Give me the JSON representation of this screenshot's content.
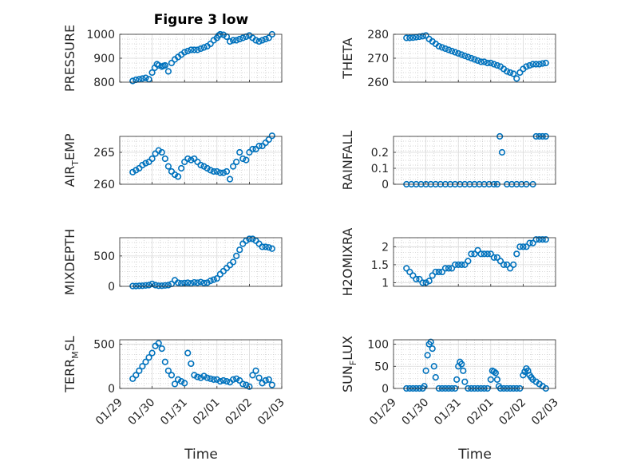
{
  "figure": {
    "title": "Figure 3 low"
  },
  "colors": {
    "marker": "#0072BD",
    "axis": "#262626",
    "grid": "#c8c8c8",
    "background": "#ffffff"
  },
  "chart_data": [
    {
      "type": "scatter",
      "ylabel": "PRESSURE",
      "ylim": [
        800,
        1000
      ],
      "yticks": [
        800,
        900,
        1000
      ],
      "xticks": [
        "01/29",
        "01/30",
        "01/31",
        "02/01",
        "02/02",
        "02/03"
      ],
      "xlim": [
        0,
        5
      ],
      "x": [
        0.4,
        0.5,
        0.6,
        0.7,
        0.8,
        0.9,
        1.0,
        1.08,
        1.15,
        1.2,
        1.3,
        1.35,
        1.4,
        1.5,
        1.6,
        1.7,
        1.8,
        1.9,
        2.0,
        2.1,
        2.2,
        2.3,
        2.4,
        2.5,
        2.6,
        2.7,
        2.8,
        2.9,
        3.0,
        3.05,
        3.1,
        3.2,
        3.3,
        3.4,
        3.5,
        3.6,
        3.7,
        3.8,
        3.9,
        4.0,
        4.1,
        4.2,
        4.3,
        4.4,
        4.5,
        4.6,
        4.7
      ],
      "y": [
        805,
        810,
        812,
        815,
        818,
        812,
        840,
        860,
        875,
        870,
        865,
        868,
        870,
        845,
        880,
        895,
        905,
        915,
        925,
        930,
        935,
        935,
        935,
        940,
        945,
        950,
        960,
        975,
        985,
        995,
        1000,
        998,
        990,
        970,
        975,
        975,
        980,
        985,
        990,
        995,
        985,
        975,
        970,
        975,
        980,
        985,
        1000
      ]
    },
    {
      "type": "scatter",
      "ylabel": "THETA",
      "ylim": [
        260,
        280
      ],
      "yticks": [
        260,
        270,
        280
      ],
      "xticks": [
        "01/29",
        "01/30",
        "01/31",
        "02/01",
        "02/02",
        "02/03"
      ],
      "xlim": [
        0,
        5
      ],
      "x": [
        0.4,
        0.5,
        0.6,
        0.7,
        0.8,
        0.9,
        1.0,
        1.1,
        1.2,
        1.3,
        1.4,
        1.5,
        1.6,
        1.7,
        1.8,
        1.9,
        2.0,
        2.1,
        2.2,
        2.3,
        2.4,
        2.5,
        2.6,
        2.7,
        2.8,
        2.9,
        3.0,
        3.1,
        3.2,
        3.3,
        3.4,
        3.5,
        3.6,
        3.7,
        3.8,
        3.9,
        4.0,
        4.1,
        4.2,
        4.3,
        4.4,
        4.5,
        4.6,
        4.7
      ],
      "y": [
        278.5,
        278.5,
        278.6,
        278.8,
        279.0,
        279.2,
        279.5,
        278.0,
        277.0,
        276.0,
        275.0,
        274.5,
        274.0,
        273.5,
        273.0,
        272.5,
        272.0,
        271.5,
        271.0,
        270.5,
        270.0,
        269.5,
        269.0,
        268.5,
        268.5,
        268.0,
        268.0,
        267.5,
        267.0,
        266.5,
        265.5,
        264.5,
        264.0,
        263.5,
        261.5,
        264.0,
        265.5,
        266.5,
        267.0,
        267.5,
        267.5,
        267.5,
        267.8,
        268.0
      ]
    },
    {
      "type": "scatter",
      "ylabel": "AIR",
      "ylabel_sub": "T",
      "ylabel_rest": "EMP",
      "ylim": [
        260,
        267.5
      ],
      "yticks": [
        260,
        265
      ],
      "xticks": [
        "01/29",
        "01/30",
        "01/31",
        "02/01",
        "02/02",
        "02/03"
      ],
      "xlim": [
        0,
        5
      ],
      "x": [
        0.4,
        0.5,
        0.6,
        0.7,
        0.8,
        0.9,
        1.0,
        1.1,
        1.2,
        1.3,
        1.4,
        1.5,
        1.6,
        1.7,
        1.8,
        1.9,
        2.0,
        2.1,
        2.2,
        2.3,
        2.4,
        2.5,
        2.6,
        2.7,
        2.8,
        2.9,
        3.0,
        3.1,
        3.2,
        3.3,
        3.4,
        3.5,
        3.6,
        3.7,
        3.8,
        3.9,
        4.0,
        4.1,
        4.2,
        4.3,
        4.4,
        4.5,
        4.6,
        4.7
      ],
      "y": [
        261.9,
        262.2,
        262.5,
        263.0,
        263.3,
        263.5,
        264.0,
        264.8,
        265.3,
        265.0,
        264.0,
        262.8,
        262.0,
        261.5,
        261.2,
        262.5,
        263.5,
        264.0,
        263.8,
        264.0,
        263.5,
        263.0,
        262.8,
        262.5,
        262.2,
        262.0,
        262.0,
        261.8,
        261.8,
        262.0,
        260.8,
        262.8,
        263.5,
        265.0,
        264.0,
        263.8,
        265.0,
        265.5,
        265.5,
        266.0,
        266.0,
        266.5,
        267.0,
        267.6
      ]
    },
    {
      "type": "scatter",
      "ylabel": "RAINFALL",
      "ylim": [
        0,
        0.3
      ],
      "yticks": [
        0,
        0.1,
        0.2
      ],
      "xticks": [
        "01/29",
        "01/30",
        "01/31",
        "02/01",
        "02/02",
        "02/03"
      ],
      "xlim": [
        0,
        5
      ],
      "x": [
        0.4,
        0.55,
        0.7,
        0.85,
        1.0,
        1.15,
        1.3,
        1.45,
        1.6,
        1.75,
        1.9,
        2.05,
        2.2,
        2.35,
        2.5,
        2.65,
        2.8,
        2.95,
        3.1,
        3.2,
        3.28,
        3.35,
        3.5,
        3.65,
        3.8,
        3.95,
        4.1,
        4.3,
        4.4,
        4.5,
        4.6,
        4.7
      ],
      "y": [
        0,
        0,
        0,
        0,
        0,
        0,
        0,
        0,
        0,
        0,
        0,
        0,
        0,
        0,
        0,
        0,
        0,
        0,
        0,
        0,
        0.3,
        0.2,
        0,
        0,
        0,
        0,
        0,
        0,
        0.3,
        0.3,
        0.3,
        0.3
      ]
    },
    {
      "type": "scatter",
      "ylabel": "MIXDEPTH",
      "ylim": [
        0,
        800
      ],
      "yticks": [
        0,
        500
      ],
      "xticks": [
        "01/29",
        "01/30",
        "01/31",
        "02/01",
        "02/02",
        "02/03"
      ],
      "xlim": [
        0,
        5
      ],
      "x": [
        0.4,
        0.5,
        0.6,
        0.7,
        0.8,
        0.9,
        1.0,
        1.1,
        1.2,
        1.3,
        1.4,
        1.5,
        1.6,
        1.7,
        1.8,
        1.9,
        2.0,
        2.1,
        2.2,
        2.3,
        2.4,
        2.5,
        2.6,
        2.7,
        2.8,
        2.9,
        3.0,
        3.1,
        3.2,
        3.3,
        3.4,
        3.5,
        3.6,
        3.7,
        3.8,
        3.9,
        4.0,
        4.1,
        4.2,
        4.3,
        4.4,
        4.5,
        4.6,
        4.7
      ],
      "y": [
        5,
        5,
        8,
        10,
        15,
        20,
        40,
        20,
        10,
        10,
        15,
        20,
        40,
        100,
        60,
        50,
        55,
        60,
        50,
        65,
        60,
        70,
        55,
        60,
        90,
        110,
        130,
        200,
        250,
        300,
        350,
        400,
        500,
        600,
        700,
        750,
        780,
        780,
        750,
        700,
        650,
        650,
        640,
        620
      ]
    },
    {
      "type": "scatter",
      "ylabel": "H2OMIXRA",
      "ylim": [
        0.9,
        2.25
      ],
      "yticks": [
        1,
        1.5,
        2
      ],
      "xticks": [
        "01/29",
        "01/30",
        "01/31",
        "02/01",
        "02/02",
        "02/03"
      ],
      "xlim": [
        0,
        5
      ],
      "x": [
        0.4,
        0.5,
        0.6,
        0.7,
        0.8,
        0.9,
        1.0,
        1.1,
        1.2,
        1.3,
        1.4,
        1.5,
        1.6,
        1.7,
        1.8,
        1.9,
        2.0,
        2.1,
        2.2,
        2.3,
        2.4,
        2.5,
        2.6,
        2.7,
        2.8,
        2.9,
        3.0,
        3.1,
        3.2,
        3.3,
        3.4,
        3.5,
        3.6,
        3.7,
        3.8,
        3.9,
        4.0,
        4.1,
        4.2,
        4.3,
        4.4,
        4.5,
        4.6,
        4.7
      ],
      "y": [
        1.4,
        1.3,
        1.2,
        1.1,
        1.1,
        1.0,
        1.0,
        1.05,
        1.2,
        1.3,
        1.3,
        1.3,
        1.4,
        1.4,
        1.4,
        1.5,
        1.5,
        1.5,
        1.5,
        1.6,
        1.8,
        1.8,
        1.9,
        1.8,
        1.8,
        1.8,
        1.8,
        1.7,
        1.7,
        1.6,
        1.5,
        1.5,
        1.4,
        1.5,
        1.8,
        2.0,
        2.0,
        2.0,
        2.1,
        2.1,
        2.2,
        2.2,
        2.2,
        2.2
      ]
    },
    {
      "type": "scatter",
      "ylabel": "TERR",
      "ylabel_sub": "M",
      "ylabel_rest": "SL",
      "ylim": [
        0,
        550
      ],
      "yticks": [
        0,
        500
      ],
      "xticks": [
        "01/29",
        "01/30",
        "01/31",
        "02/01",
        "02/02",
        "02/03"
      ],
      "xlim": [
        0,
        5
      ],
      "x": [
        0.4,
        0.5,
        0.6,
        0.7,
        0.8,
        0.9,
        1.0,
        1.1,
        1.2,
        1.3,
        1.4,
        1.5,
        1.6,
        1.7,
        1.8,
        1.9,
        2.0,
        2.1,
        2.2,
        2.3,
        2.4,
        2.5,
        2.6,
        2.7,
        2.8,
        2.9,
        3.0,
        3.1,
        3.2,
        3.3,
        3.4,
        3.5,
        3.6,
        3.7,
        3.8,
        3.9,
        4.0,
        4.1,
        4.2,
        4.3,
        4.4,
        4.5,
        4.6,
        4.7
      ],
      "y": [
        110,
        150,
        200,
        250,
        300,
        350,
        400,
        480,
        510,
        450,
        300,
        200,
        150,
        50,
        100,
        80,
        60,
        400,
        280,
        150,
        130,
        120,
        140,
        120,
        110,
        100,
        100,
        80,
        90,
        80,
        70,
        100,
        110,
        90,
        50,
        40,
        20,
        150,
        200,
        120,
        60,
        90,
        100,
        40
      ]
    },
    {
      "type": "scatter",
      "ylabel": "SUN",
      "ylabel_sub": "F",
      "ylabel_rest": "LUX",
      "ylim": [
        0,
        110
      ],
      "yticks": [
        0,
        50,
        100
      ],
      "xticks": [
        "01/29",
        "01/30",
        "01/31",
        "02/01",
        "02/02",
        "02/03"
      ],
      "xlim": [
        0,
        5
      ],
      "x": [
        0.4,
        0.5,
        0.6,
        0.7,
        0.8,
        0.9,
        0.95,
        1.0,
        1.05,
        1.1,
        1.15,
        1.2,
        1.25,
        1.3,
        1.4,
        1.5,
        1.6,
        1.7,
        1.8,
        1.9,
        1.95,
        2.0,
        2.05,
        2.1,
        2.15,
        2.2,
        2.3,
        2.4,
        2.5,
        2.6,
        2.7,
        2.8,
        2.9,
        3.0,
        3.05,
        3.1,
        3.15,
        3.2,
        3.25,
        3.3,
        3.4,
        3.5,
        3.6,
        3.7,
        3.8,
        3.9,
        4.0,
        4.05,
        4.1,
        4.15,
        4.2,
        4.25,
        4.3,
        4.4,
        4.5,
        4.6,
        4.7
      ],
      "y": [
        0,
        0,
        0,
        0,
        0,
        0,
        5,
        40,
        75,
        100,
        105,
        90,
        50,
        25,
        0,
        0,
        0,
        0,
        0,
        0,
        20,
        50,
        60,
        55,
        40,
        15,
        0,
        0,
        0,
        0,
        0,
        0,
        0,
        20,
        40,
        38,
        35,
        20,
        5,
        0,
        0,
        0,
        0,
        0,
        0,
        0,
        30,
        38,
        45,
        40,
        30,
        25,
        20,
        15,
        10,
        5,
        0
      ]
    }
  ],
  "xlabels": {
    "left": "Time",
    "right": "Time"
  }
}
